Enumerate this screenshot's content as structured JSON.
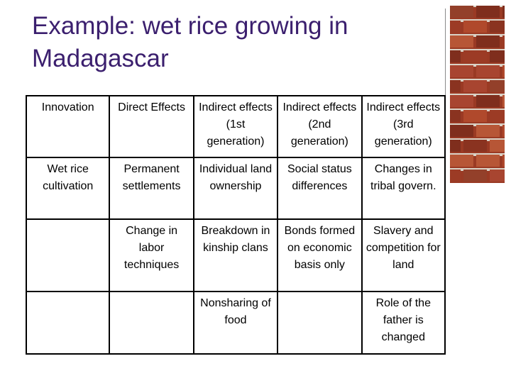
{
  "slide": {
    "title_line1": "Example: wet rice growing in",
    "title_line2": "Madagascar",
    "title_color": "#3b1f6e",
    "decor_image": "brick-wall"
  },
  "table": {
    "headers": [
      "Innovation",
      "Direct Effects",
      "Indirect effects (1st generation)",
      "Indirect effects (2nd generation)",
      "Indirect effects (3rd generation)"
    ],
    "rows": [
      [
        "Wet rice cultivation",
        "Permanent settlements",
        "Individual land ownership",
        "Social status differences",
        "Changes in tribal govern."
      ],
      [
        "",
        "Change in labor techniques",
        "Breakdown in kinship clans",
        "Bonds formed on economic basis only",
        "Slavery and competition for land"
      ],
      [
        "",
        "",
        "Nonsharing of food",
        "",
        "Role of the father is changed"
      ]
    ]
  }
}
